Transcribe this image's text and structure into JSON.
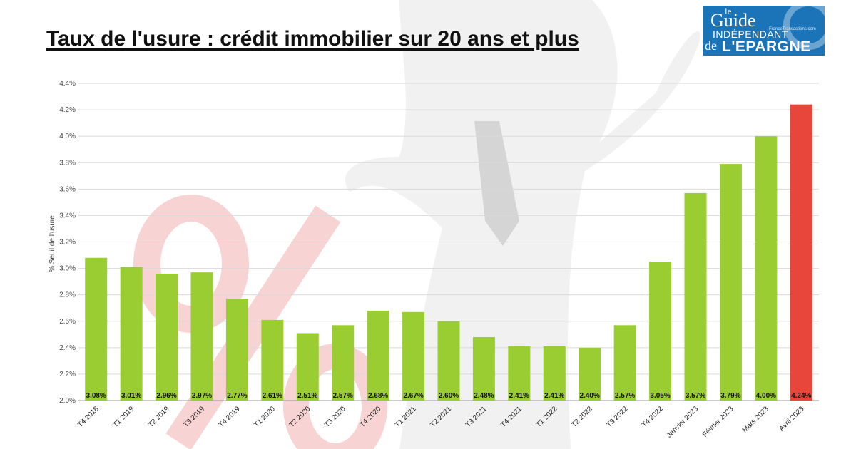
{
  "title": "Taux de l'usure : crédit immobilier sur 20 ans et plus",
  "logo": {
    "le": "le",
    "guide": "Guide",
    "independant": "INDÉPENDANT",
    "sub": "FranceTransactions.com",
    "de": "de",
    "epargne": "L'EPARGNE",
    "color": "#1b73b8"
  },
  "colors": {
    "bar": "#9acd32",
    "highlight": "#e8463b",
    "grid": "#d9d9d9",
    "watermark_percent": "#f4b6b6",
    "watermark_figure": "#e6e6e6"
  },
  "chart_data": {
    "type": "bar",
    "ylabel": "% Seuil de l'usure",
    "xlabel": "",
    "ylim": [
      2.0,
      4.4
    ],
    "yticks": [
      2.0,
      2.2,
      2.4,
      2.6,
      2.8,
      3.0,
      3.2,
      3.4,
      3.6,
      3.8,
      4.0,
      4.2,
      4.4
    ],
    "ytick_labels": [
      "2.0%",
      "2.2%",
      "2.4%",
      "2.6%",
      "2.8%",
      "3.0%",
      "3.2%",
      "3.4%",
      "3.6%",
      "3.8%",
      "4.0%",
      "4.2%",
      "4.4%"
    ],
    "grid": true,
    "categories": [
      "T4 2018",
      "T1 2019",
      "T2 2019",
      "T3 2019",
      "T4 2019",
      "T1 2020",
      "T2 2020",
      "T3 2020",
      "T4 2020",
      "T1 2021",
      "T2 2021",
      "T3 2021",
      "T4 2021",
      "T1 2022",
      "T2 2022",
      "T3 2022",
      "T4 2022",
      "Janvier 2023",
      "Février 2023",
      "Mars 2023",
      "Avril 2023"
    ],
    "values": [
      3.08,
      3.01,
      2.96,
      2.97,
      2.77,
      2.61,
      2.51,
      2.57,
      2.68,
      2.67,
      2.6,
      2.48,
      2.41,
      2.41,
      2.4,
      2.57,
      3.05,
      3.57,
      3.79,
      4.0,
      4.24
    ],
    "data_labels": [
      "3.08%",
      "3.01%",
      "2.96%",
      "2.97%",
      "2.77%",
      "2.61%",
      "2.51%",
      "2.57%",
      "2.68%",
      "2.67%",
      "2.60%",
      "2.48%",
      "2.41%",
      "2.41%",
      "2.40%",
      "2.57%",
      "3.05%",
      "3.57%",
      "3.79%",
      "4.00%",
      "4.24%"
    ],
    "highlight_index": 20
  }
}
